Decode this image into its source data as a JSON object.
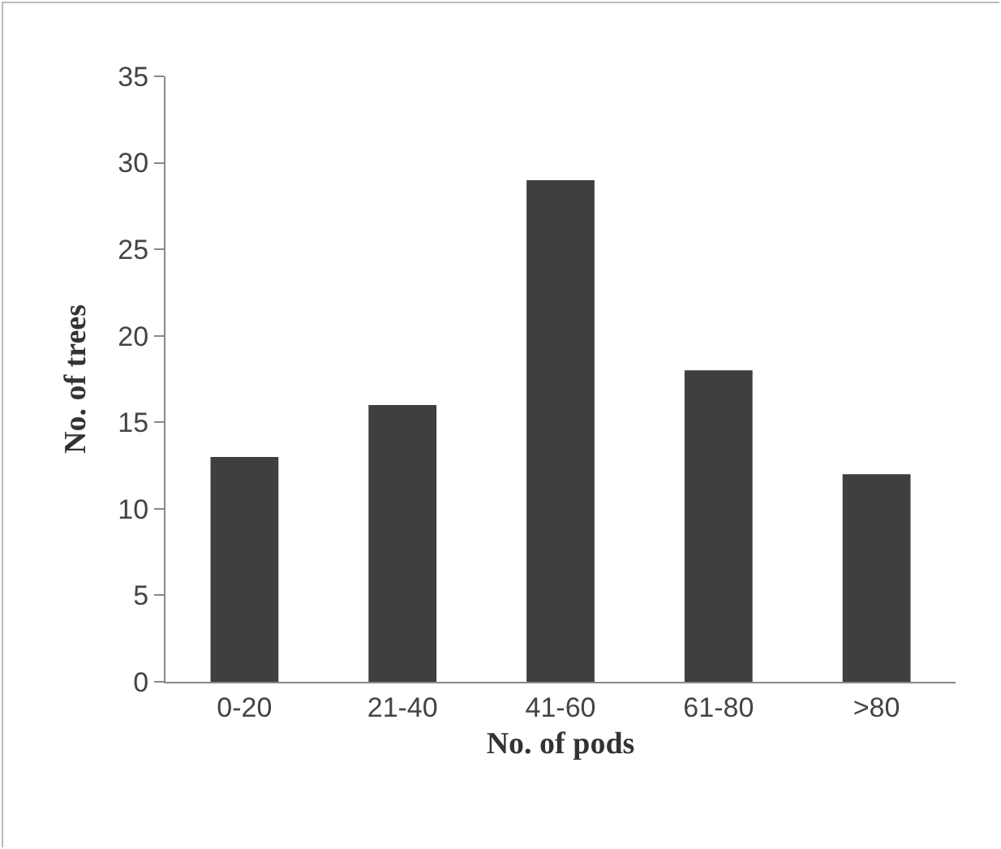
{
  "chart_data": {
    "type": "bar",
    "categories": [
      "0-20",
      "21-40",
      "41-60",
      "61-80",
      ">80"
    ],
    "values": [
      13,
      16,
      29,
      18,
      12
    ],
    "color": "#3f3f3f",
    "xlabel": "No. of pods",
    "ylabel": "No. of trees",
    "ylim": [
      0,
      35
    ],
    "yticks": [
      0,
      5,
      10,
      15,
      20,
      25,
      30,
      35
    ],
    "grid": false,
    "legend": false
  }
}
